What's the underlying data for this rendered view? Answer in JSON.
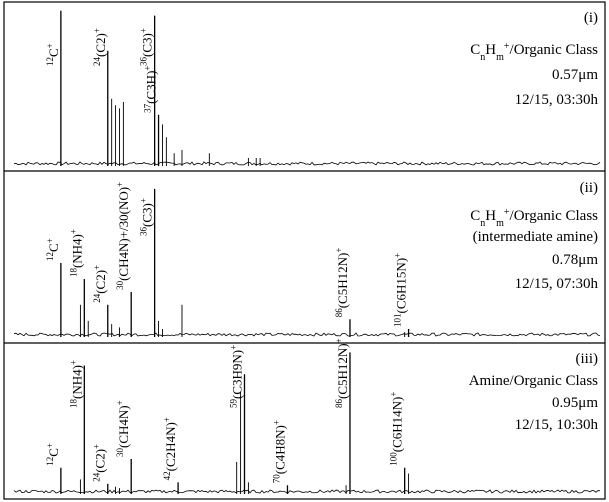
{
  "chart_data": [
    {
      "type": "mass-spectrum",
      "panel_label": "(i)",
      "class_label": [
        "C",
        "n",
        "H",
        "m",
        "+",
        "/Organic Class"
      ],
      "class_label_2": "",
      "size": "0.57μm",
      "datetime": "12/15, 03:30h",
      "ylim": [
        0,
        1
      ],
      "labeled_peaks": [
        {
          "mz": 12,
          "label": "C",
          "iso": "12",
          "sub": "",
          "charge": "+",
          "height": 0.97
        },
        {
          "mz": 24,
          "label": "(C2)",
          "iso": "24",
          "sub": "2",
          "charge": "+",
          "height": 0.72
        },
        {
          "mz": 36,
          "label": "(C3)",
          "iso": "36",
          "sub": "3",
          "charge": "+",
          "height": 0.94
        },
        {
          "mz": 37,
          "label": "(C3H)",
          "iso": "37",
          "sub": "3",
          "charge": "+",
          "height": 0.32
        }
      ],
      "minor_peaks": [
        {
          "mz": 25,
          "height": 0.42
        },
        {
          "mz": 26,
          "height": 0.38
        },
        {
          "mz": 27,
          "height": 0.36
        },
        {
          "mz": 28,
          "height": 0.4
        },
        {
          "mz": 38,
          "height": 0.26
        },
        {
          "mz": 39,
          "height": 0.18
        },
        {
          "mz": 41,
          "height": 0.08
        },
        {
          "mz": 43,
          "height": 0.1
        },
        {
          "mz": 50,
          "height": 0.08
        },
        {
          "mz": 60,
          "height": 0.05
        },
        {
          "mz": 62,
          "height": 0.05
        },
        {
          "mz": 63,
          "height": 0.05
        }
      ]
    },
    {
      "type": "mass-spectrum",
      "panel_label": "(ii)",
      "class_label": [
        "C",
        "n",
        "H",
        "m",
        "+",
        "/Organic Class"
      ],
      "class_label_2": "(intermediate amine)",
      "size": "0.78μm",
      "datetime": "12/15, 07:30h",
      "ylim": [
        0,
        1
      ],
      "labeled_peaks": [
        {
          "mz": 12,
          "label": "C",
          "iso": "12",
          "sub": "",
          "charge": "+",
          "height": 0.46
        },
        {
          "mz": 18,
          "label": "(NH4)",
          "iso": "18",
          "sub": "4",
          "charge": "+",
          "height": 0.36
        },
        {
          "mz": 24,
          "label": "(C2)",
          "iso": "24",
          "sub": "2",
          "charge": "+",
          "height": 0.2
        },
        {
          "mz": 30,
          "label": "(CH4N)+/30(NO)",
          "iso": "30",
          "sub": "4",
          "charge": "+",
          "height": 0.28
        },
        {
          "mz": 36,
          "label": "(C3)",
          "iso": "36",
          "sub": "3",
          "charge": "+",
          "height": 0.92
        },
        {
          "mz": 86,
          "label": "(C5H12N)",
          "iso": "86",
          "sub": "5,12",
          "charge": "+",
          "height": 0.11
        },
        {
          "mz": 101,
          "label": "(C6H15N)",
          "iso": "101",
          "sub": "6,15",
          "charge": "+",
          "height": 0.05
        }
      ],
      "minor_peaks": [
        {
          "mz": 17,
          "height": 0.2
        },
        {
          "mz": 19,
          "height": 0.1
        },
        {
          "mz": 25,
          "height": 0.08
        },
        {
          "mz": 27,
          "height": 0.06
        },
        {
          "mz": 37,
          "height": 0.1
        },
        {
          "mz": 38,
          "height": 0.05
        },
        {
          "mz": 43,
          "height": 0.2
        },
        {
          "mz": 100,
          "height": 0.03
        }
      ]
    },
    {
      "type": "mass-spectrum",
      "panel_label": "(iii)",
      "class_label": [
        "Amine/Organic Class"
      ],
      "class_label_2": "",
      "size": "0.95μm",
      "datetime": "12/15, 10:30h",
      "ylim": [
        0,
        1
      ],
      "labeled_peaks": [
        {
          "mz": 12,
          "label": "C",
          "iso": "12",
          "sub": "",
          "charge": "+",
          "height": 0.18
        },
        {
          "mz": 18,
          "label": "(NH4)",
          "iso": "18",
          "sub": "4",
          "charge": "+",
          "height": 0.88
        },
        {
          "mz": 24,
          "label": "(C2)",
          "iso": "24",
          "sub": "2",
          "charge": "+",
          "height": 0.07
        },
        {
          "mz": 30,
          "label": "(CH4N)",
          "iso": "30",
          "sub": "4",
          "charge": "+",
          "height": 0.24
        },
        {
          "mz": 42,
          "label": "(C2H4N)",
          "iso": "42",
          "sub": "2,4",
          "charge": "+",
          "height": 0.08
        },
        {
          "mz": 59,
          "label": "(C3H9N)",
          "iso": "59",
          "sub": "3,9",
          "charge": "+",
          "height": 0.82
        },
        {
          "mz": 70,
          "label": "(C4H8N)",
          "iso": "70",
          "sub": "4,8",
          "charge": "+",
          "height": 0.06
        },
        {
          "mz": 86,
          "label": "(C5H12N)",
          "iso": "86",
          "sub": "5,12",
          "charge": "+",
          "height": 0.97
        },
        {
          "mz": 100,
          "label": "(C6H14N)",
          "iso": "100",
          "sub": "6,14",
          "charge": "+",
          "height": 0.18
        }
      ],
      "minor_peaks": [
        {
          "mz": 17,
          "height": 0.1
        },
        {
          "mz": 26,
          "height": 0.05
        },
        {
          "mz": 27,
          "height": 0.04
        },
        {
          "mz": 57,
          "height": 0.22
        },
        {
          "mz": 58,
          "height": 0.7
        },
        {
          "mz": 60,
          "height": 0.08
        },
        {
          "mz": 85,
          "height": 0.06
        },
        {
          "mz": 101,
          "height": 0.14
        }
      ]
    }
  ],
  "xlim_mz": [
    0,
    150
  ]
}
